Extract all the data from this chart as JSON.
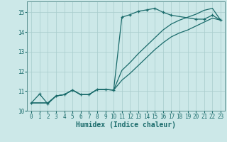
{
  "title": "",
  "xlabel": "Humidex (Indice chaleur)",
  "bg_color": "#cce8e8",
  "line_color": "#1a6b6b",
  "grid_color": "#a8cccc",
  "xlim": [
    -0.5,
    23.5
  ],
  "ylim": [
    10.0,
    15.55
  ],
  "yticks": [
    10,
    11,
    12,
    13,
    14,
    15
  ],
  "xticks": [
    0,
    1,
    2,
    3,
    4,
    5,
    6,
    7,
    8,
    9,
    10,
    11,
    12,
    13,
    14,
    15,
    16,
    17,
    18,
    19,
    20,
    21,
    22,
    23
  ],
  "line1_x": [
    0,
    1,
    2,
    3,
    4,
    5,
    6,
    7,
    8,
    9,
    10,
    11,
    12,
    13,
    14,
    15,
    16,
    17,
    20,
    21,
    22,
    23
  ],
  "line1_y": [
    10.4,
    10.85,
    10.35,
    10.75,
    10.82,
    11.05,
    10.82,
    10.82,
    11.08,
    11.08,
    11.05,
    14.75,
    14.88,
    15.05,
    15.12,
    15.2,
    15.0,
    14.85,
    14.65,
    14.65,
    14.85,
    14.6
  ],
  "line2_x": [
    0,
    1,
    2,
    3,
    4,
    5,
    6,
    7,
    8,
    9,
    10,
    11,
    12,
    13,
    14,
    15,
    16,
    17,
    18,
    19,
    20,
    21,
    22,
    23
  ],
  "line2_y": [
    10.4,
    10.4,
    10.4,
    10.75,
    10.82,
    11.05,
    10.82,
    10.82,
    11.08,
    11.08,
    11.05,
    11.55,
    11.9,
    12.3,
    12.7,
    13.1,
    13.45,
    13.75,
    13.95,
    14.1,
    14.3,
    14.5,
    14.7,
    14.6
  ],
  "line3_x": [
    0,
    1,
    2,
    3,
    4,
    5,
    6,
    7,
    8,
    9,
    10,
    11,
    12,
    13,
    14,
    15,
    16,
    17,
    18,
    19,
    20,
    21,
    22,
    23
  ],
  "line3_y": [
    10.4,
    10.4,
    10.4,
    10.75,
    10.82,
    11.05,
    10.82,
    10.82,
    11.08,
    11.08,
    11.05,
    12.05,
    12.45,
    12.9,
    13.3,
    13.7,
    14.1,
    14.4,
    14.6,
    14.75,
    14.9,
    15.1,
    15.2,
    14.6
  ],
  "xlabel_fontsize": 7,
  "tick_fontsize": 5.5
}
